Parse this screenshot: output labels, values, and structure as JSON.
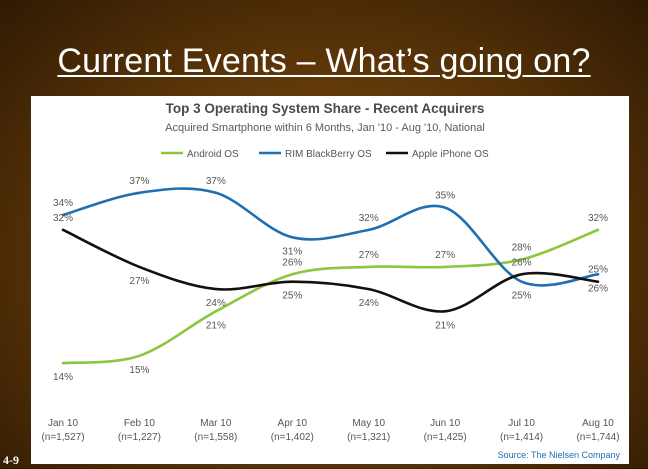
{
  "slide": {
    "title": "Current Events – What’s going on?",
    "page_number": "4-9"
  },
  "chart_data": {
    "type": "line",
    "title": "Top 3 Operating System Share - Recent Acquirers",
    "subtitle": "Acquired Smartphone within 6 Months, Jan '10 - Aug '10, National",
    "source": "Source: The Nielsen Company",
    "categories": [
      "Jan 10",
      "Feb 10",
      "Mar 10",
      "Apr 10",
      "May 10",
      "Jun 10",
      "Jul 10",
      "Aug 10"
    ],
    "category_counts": [
      "(n=1,527)",
      "(n=1,227)",
      "(n=1,558)",
      "(n=1,402)",
      "(n=1,321)",
      "(n=1,425)",
      "(n=1,414)",
      "(n=1,744)"
    ],
    "ylim": [
      12,
      39
    ],
    "grid": false,
    "legend_position": "top",
    "series": [
      {
        "name": "Android OS",
        "color": "#8cc63f",
        "values": [
          14,
          15,
          21,
          26,
          27,
          27,
          28,
          32
        ],
        "labels": [
          "14%",
          "15%",
          "21%",
          "26%",
          "27%",
          "27%",
          "28%",
          "32%"
        ]
      },
      {
        "name": "RIM BlackBerry OS",
        "color": "#1f6fb2",
        "values": [
          34,
          37,
          37,
          31,
          32,
          35,
          25,
          26
        ],
        "labels": [
          "34%",
          "37%",
          "37%",
          "31%",
          "32%",
          "35%",
          "25%",
          "26%"
        ]
      },
      {
        "name": "Apple iPhone OS",
        "color": "#111111",
        "values": [
          32,
          27,
          24,
          25,
          24,
          21,
          26,
          25
        ],
        "labels": [
          "32%",
          "27%",
          "24%",
          "25%",
          "24%",
          "21%",
          "26%",
          "25%"
        ]
      }
    ]
  }
}
